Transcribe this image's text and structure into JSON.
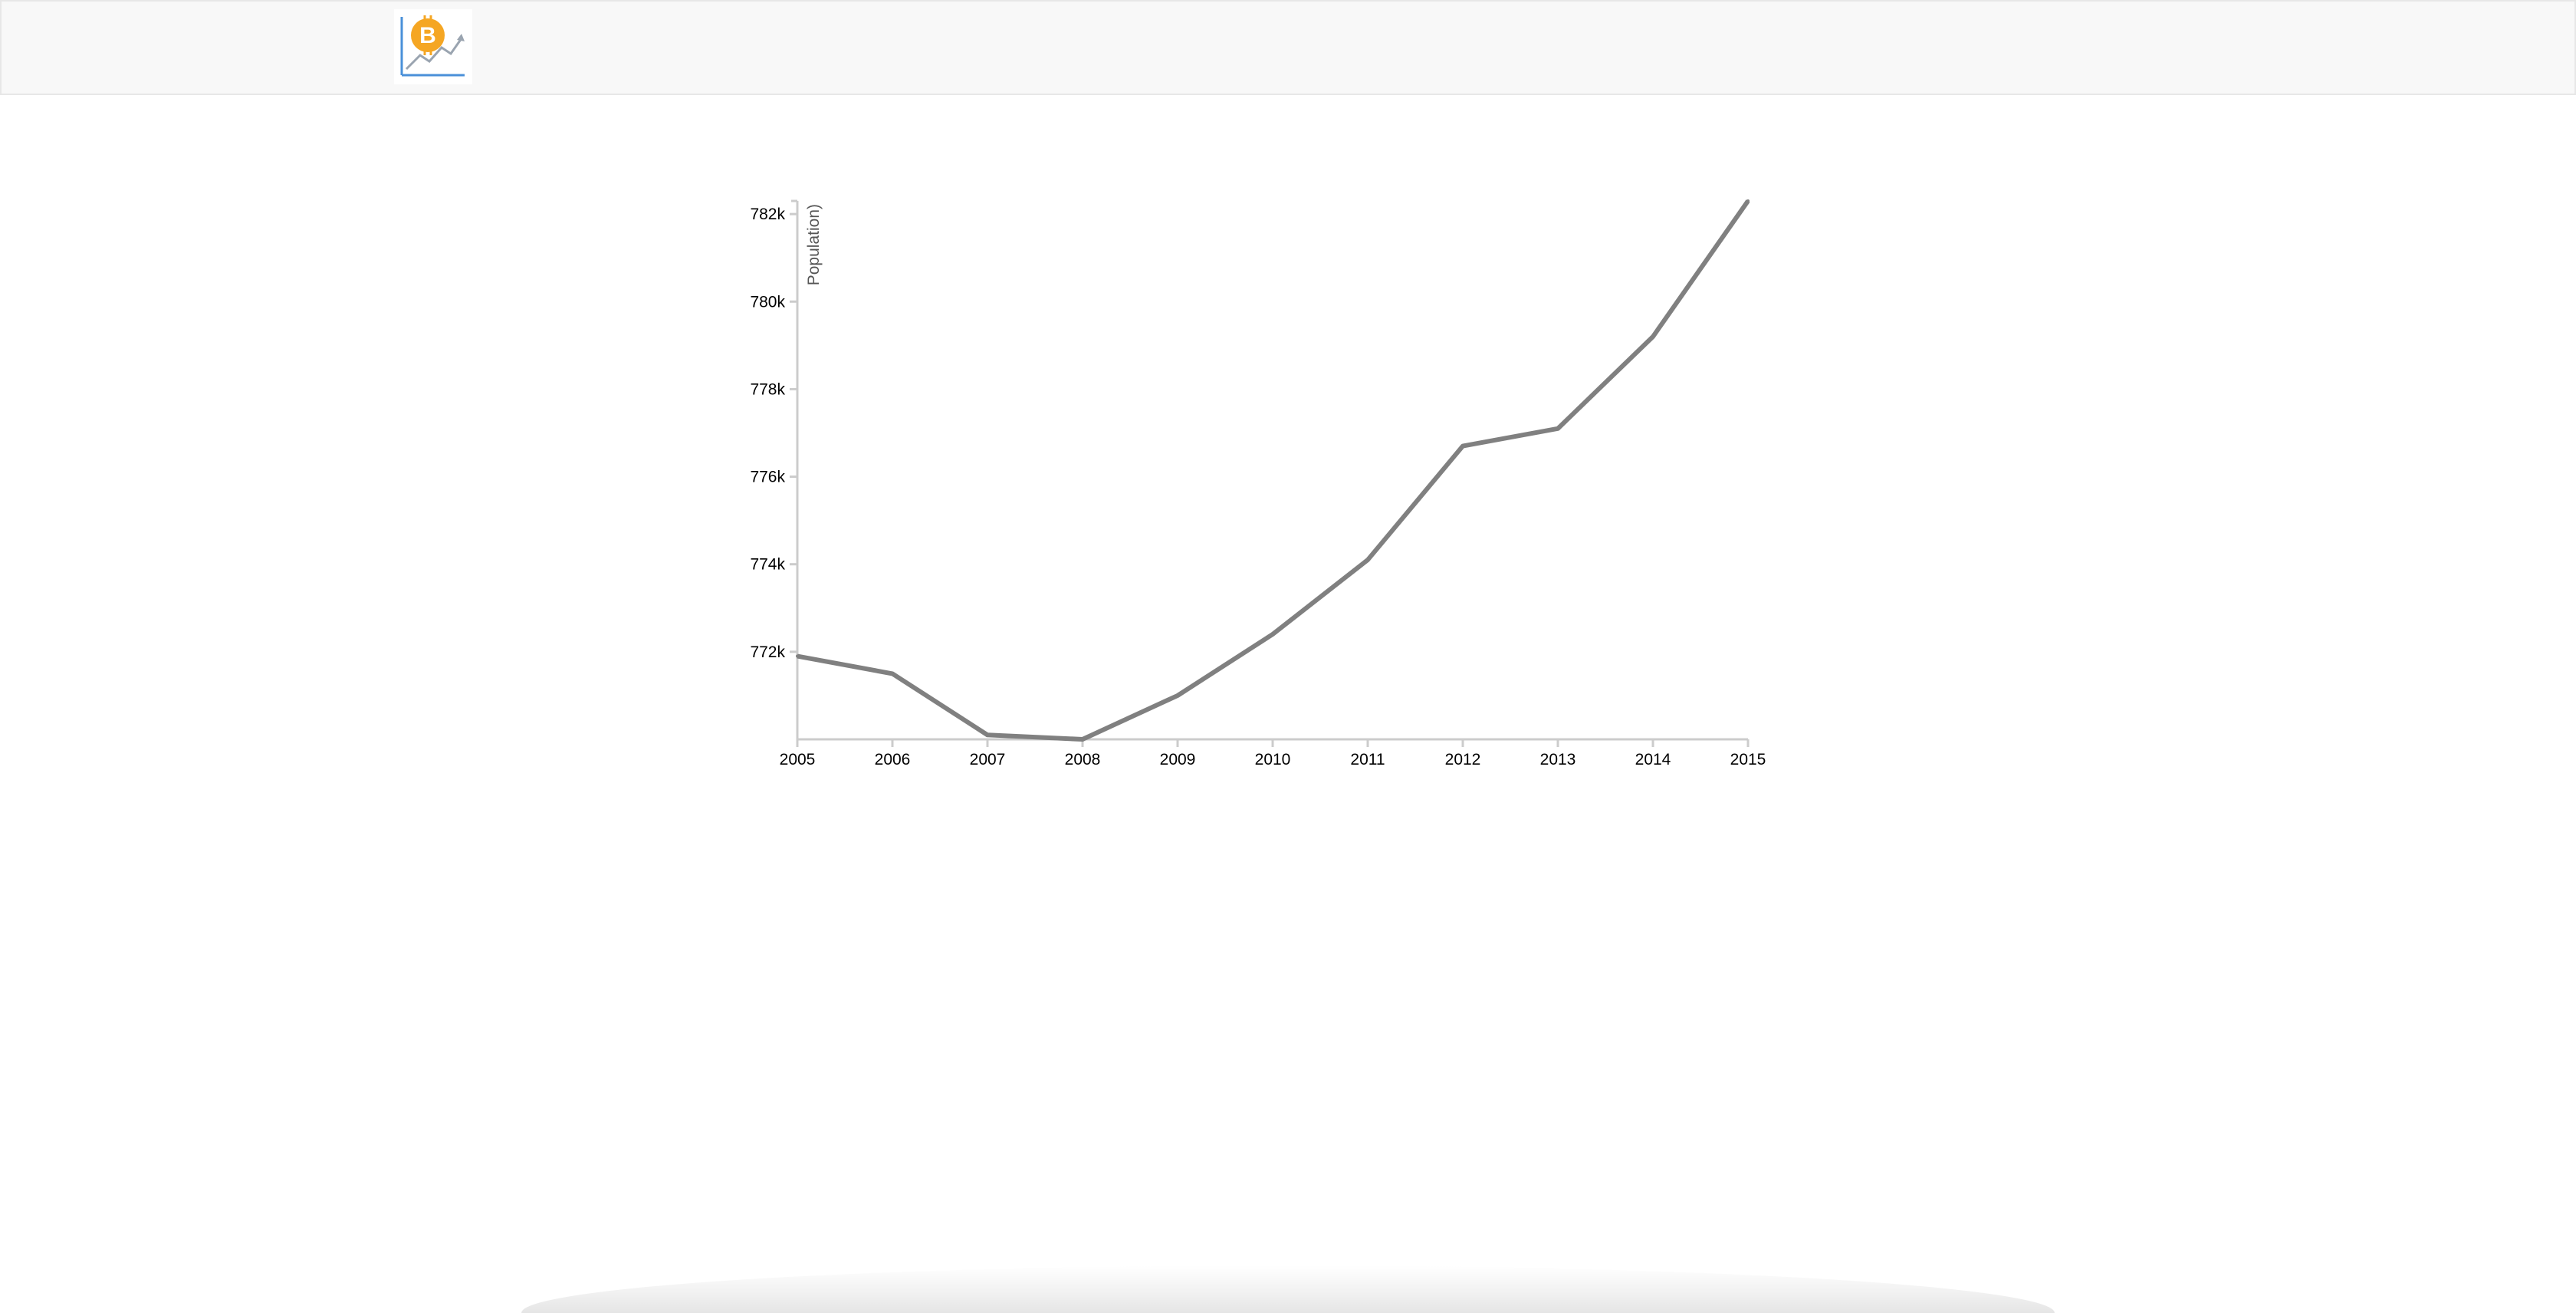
{
  "navbar": {
    "logo_icon": "bitcoin-chart-icon",
    "logo_colors": {
      "coin": "#f5a623",
      "coin_symbol": "#ffffff",
      "axes": "#4a90d9",
      "trend": "#9aa4b0"
    }
  },
  "chart_data": {
    "type": "line",
    "x": [
      2005,
      2006,
      2007,
      2008,
      2009,
      2010,
      2011,
      2012,
      2013,
      2014,
      2015
    ],
    "series": [
      {
        "values": [
          771900,
          771500,
          770100,
          770000,
          771000,
          772400,
          774100,
          776700,
          777100,
          779200,
          782300
        ]
      }
    ],
    "title": "",
    "xlabel": "",
    "ylabel": "Population)",
    "xticks": [
      "2005",
      "2006",
      "2007",
      "2008",
      "2009",
      "2010",
      "2011",
      "2012",
      "2013",
      "2014",
      "2015"
    ],
    "yticks": [
      "772k",
      "774k",
      "776k",
      "778k",
      "780k",
      "782k"
    ],
    "ytick_values": [
      772000,
      774000,
      776000,
      778000,
      780000,
      782000
    ],
    "xlim": [
      2005,
      2015
    ],
    "ylim": [
      770000,
      782300
    ],
    "grid": false,
    "legend": "none",
    "line_color": "#808080",
    "axis_color": "#cccccc"
  }
}
